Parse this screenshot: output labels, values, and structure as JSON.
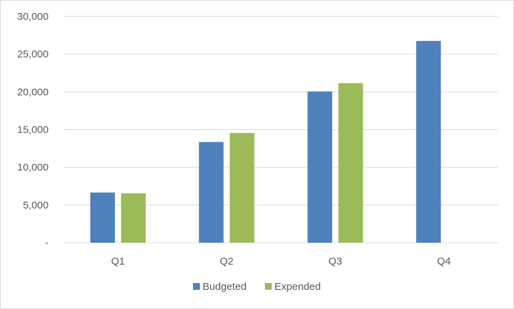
{
  "chart_data": {
    "type": "bar",
    "categories": [
      "Q1",
      "Q2",
      "Q3",
      "Q4"
    ],
    "series": [
      {
        "name": "Budgeted",
        "values": [
          6650,
          13350,
          20050,
          26750
        ],
        "color": "#4f81bd"
      },
      {
        "name": "Expended",
        "values": [
          6550,
          14550,
          21150,
          null
        ],
        "color": "#9bbb59"
      }
    ],
    "ylim": [
      0,
      30000
    ],
    "yticks": [
      0,
      5000,
      10000,
      15000,
      20000,
      25000,
      30000
    ],
    "ytick_labels": [
      "-",
      "5,000",
      "10,000",
      "15,000",
      "20,000",
      "25,000",
      "30,000"
    ],
    "grid": true,
    "legend_position": "bottom",
    "gridline_color": "#d9d9d9",
    "axis_color": "#d9d9d9"
  }
}
